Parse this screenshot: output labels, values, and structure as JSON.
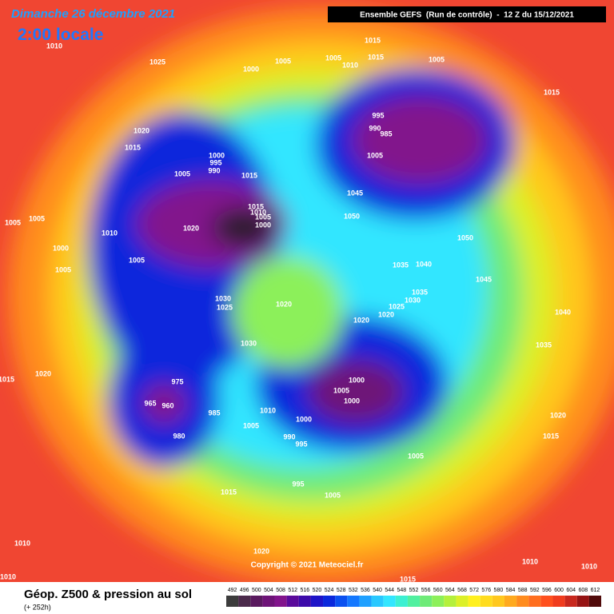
{
  "header": {
    "date": "Dimanche 26 décembre 2021",
    "local_time": "2:00 locale",
    "run": "Ensemble GEFS  (Run de contrôle)  -  12 Z du 15/12/2021"
  },
  "footer": {
    "title": "Géop. Z500 & pression au sol",
    "lead": "(+ 252h)",
    "copyright": "Copyright © 2021 Meteociel.fr"
  },
  "scale": {
    "labels": [
      "492",
      "496",
      "500",
      "504",
      "508",
      "512",
      "516",
      "520",
      "524",
      "528",
      "532",
      "536",
      "540",
      "544",
      "548",
      "552",
      "556",
      "560",
      "564",
      "568",
      "572",
      "576",
      "580",
      "584",
      "588",
      "592",
      "596",
      "600",
      "604",
      "608",
      "612"
    ],
    "colors": [
      "#3c3c3c",
      "#4b2a4b",
      "#5a1a5f",
      "#6e1478",
      "#82148c",
      "#5a0a9b",
      "#3c0aaa",
      "#1e14c8",
      "#0a28dc",
      "#0a50f0",
      "#1478ff",
      "#1ea0ff",
      "#28c8ff",
      "#32e6ff",
      "#3cf0d2",
      "#50f0a0",
      "#6eeb78",
      "#8cf05a",
      "#b4f03c",
      "#dcf028",
      "#fff01e",
      "#ffdc1e",
      "#ffc81e",
      "#ffaa1e",
      "#ff8c1e",
      "#ff6e1e",
      "#ff501e",
      "#f03c1e",
      "#c8281e",
      "#961414",
      "#500a0a"
    ]
  },
  "isobar_labels": [
    "1010",
    "1025",
    "1000",
    "1005",
    "1005",
    "1010",
    "1015",
    "1015",
    "1005",
    "1015",
    "1020",
    "1015",
    "995",
    "990",
    "985",
    "1005",
    "1000",
    "995",
    "990",
    "1005",
    "1015",
    "1045",
    "1005",
    "1005",
    "1015",
    "1010",
    "1005",
    "1000",
    "1020",
    "1050",
    "1010",
    "1050",
    "1000",
    "1005",
    "1005",
    "1035",
    "1040",
    "1045",
    "1035",
    "1030",
    "1025",
    "1030",
    "1025",
    "1020",
    "1020",
    "1020",
    "1040",
    "1030",
    "1035",
    "1000",
    "1005",
    "975",
    "965",
    "960",
    "1000",
    "985",
    "1010",
    "1005",
    "1000",
    "990",
    "995",
    "980",
    "1020",
    "1015",
    "1005",
    "995",
    "1015",
    "1005",
    "1015",
    "1020",
    "1010",
    "1020",
    "1010",
    "1010",
    "1010",
    "1015"
  ]
}
